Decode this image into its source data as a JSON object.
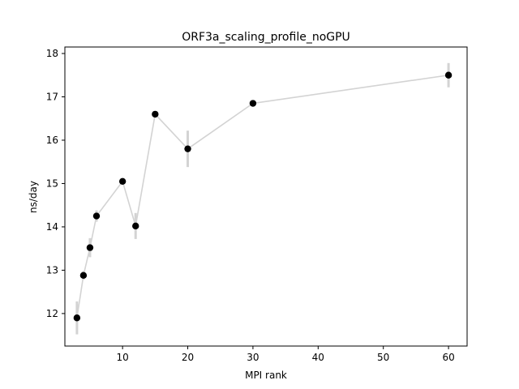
{
  "chart_data": {
    "type": "scatter",
    "title": "ORF3a_scaling_profile_noGPU",
    "xlabel": "MPI rank",
    "ylabel": "ns/day",
    "xlim": [
      1.15,
      62.85
    ],
    "ylim": [
      11.25,
      18.15
    ],
    "xticks": [
      10,
      20,
      30,
      40,
      50,
      60
    ],
    "yticks": [
      12,
      13,
      14,
      15,
      16,
      17,
      18
    ],
    "grid": false,
    "legend": "none",
    "colors": {
      "line": "#d3d3d3",
      "marker": "#000000",
      "errorbar": "#d3d3d3"
    },
    "series": [
      {
        "x": [
          3,
          4,
          5,
          6,
          10,
          12,
          15,
          20,
          30,
          60
        ],
        "y": [
          11.9,
          12.88,
          13.52,
          14.25,
          15.05,
          14.02,
          16.6,
          15.8,
          16.85,
          17.5
        ],
        "yerr": [
          0.38,
          0.1,
          0.22,
          0.13,
          0.07,
          0.3,
          0.07,
          0.42,
          0.05,
          0.28
        ]
      }
    ]
  }
}
